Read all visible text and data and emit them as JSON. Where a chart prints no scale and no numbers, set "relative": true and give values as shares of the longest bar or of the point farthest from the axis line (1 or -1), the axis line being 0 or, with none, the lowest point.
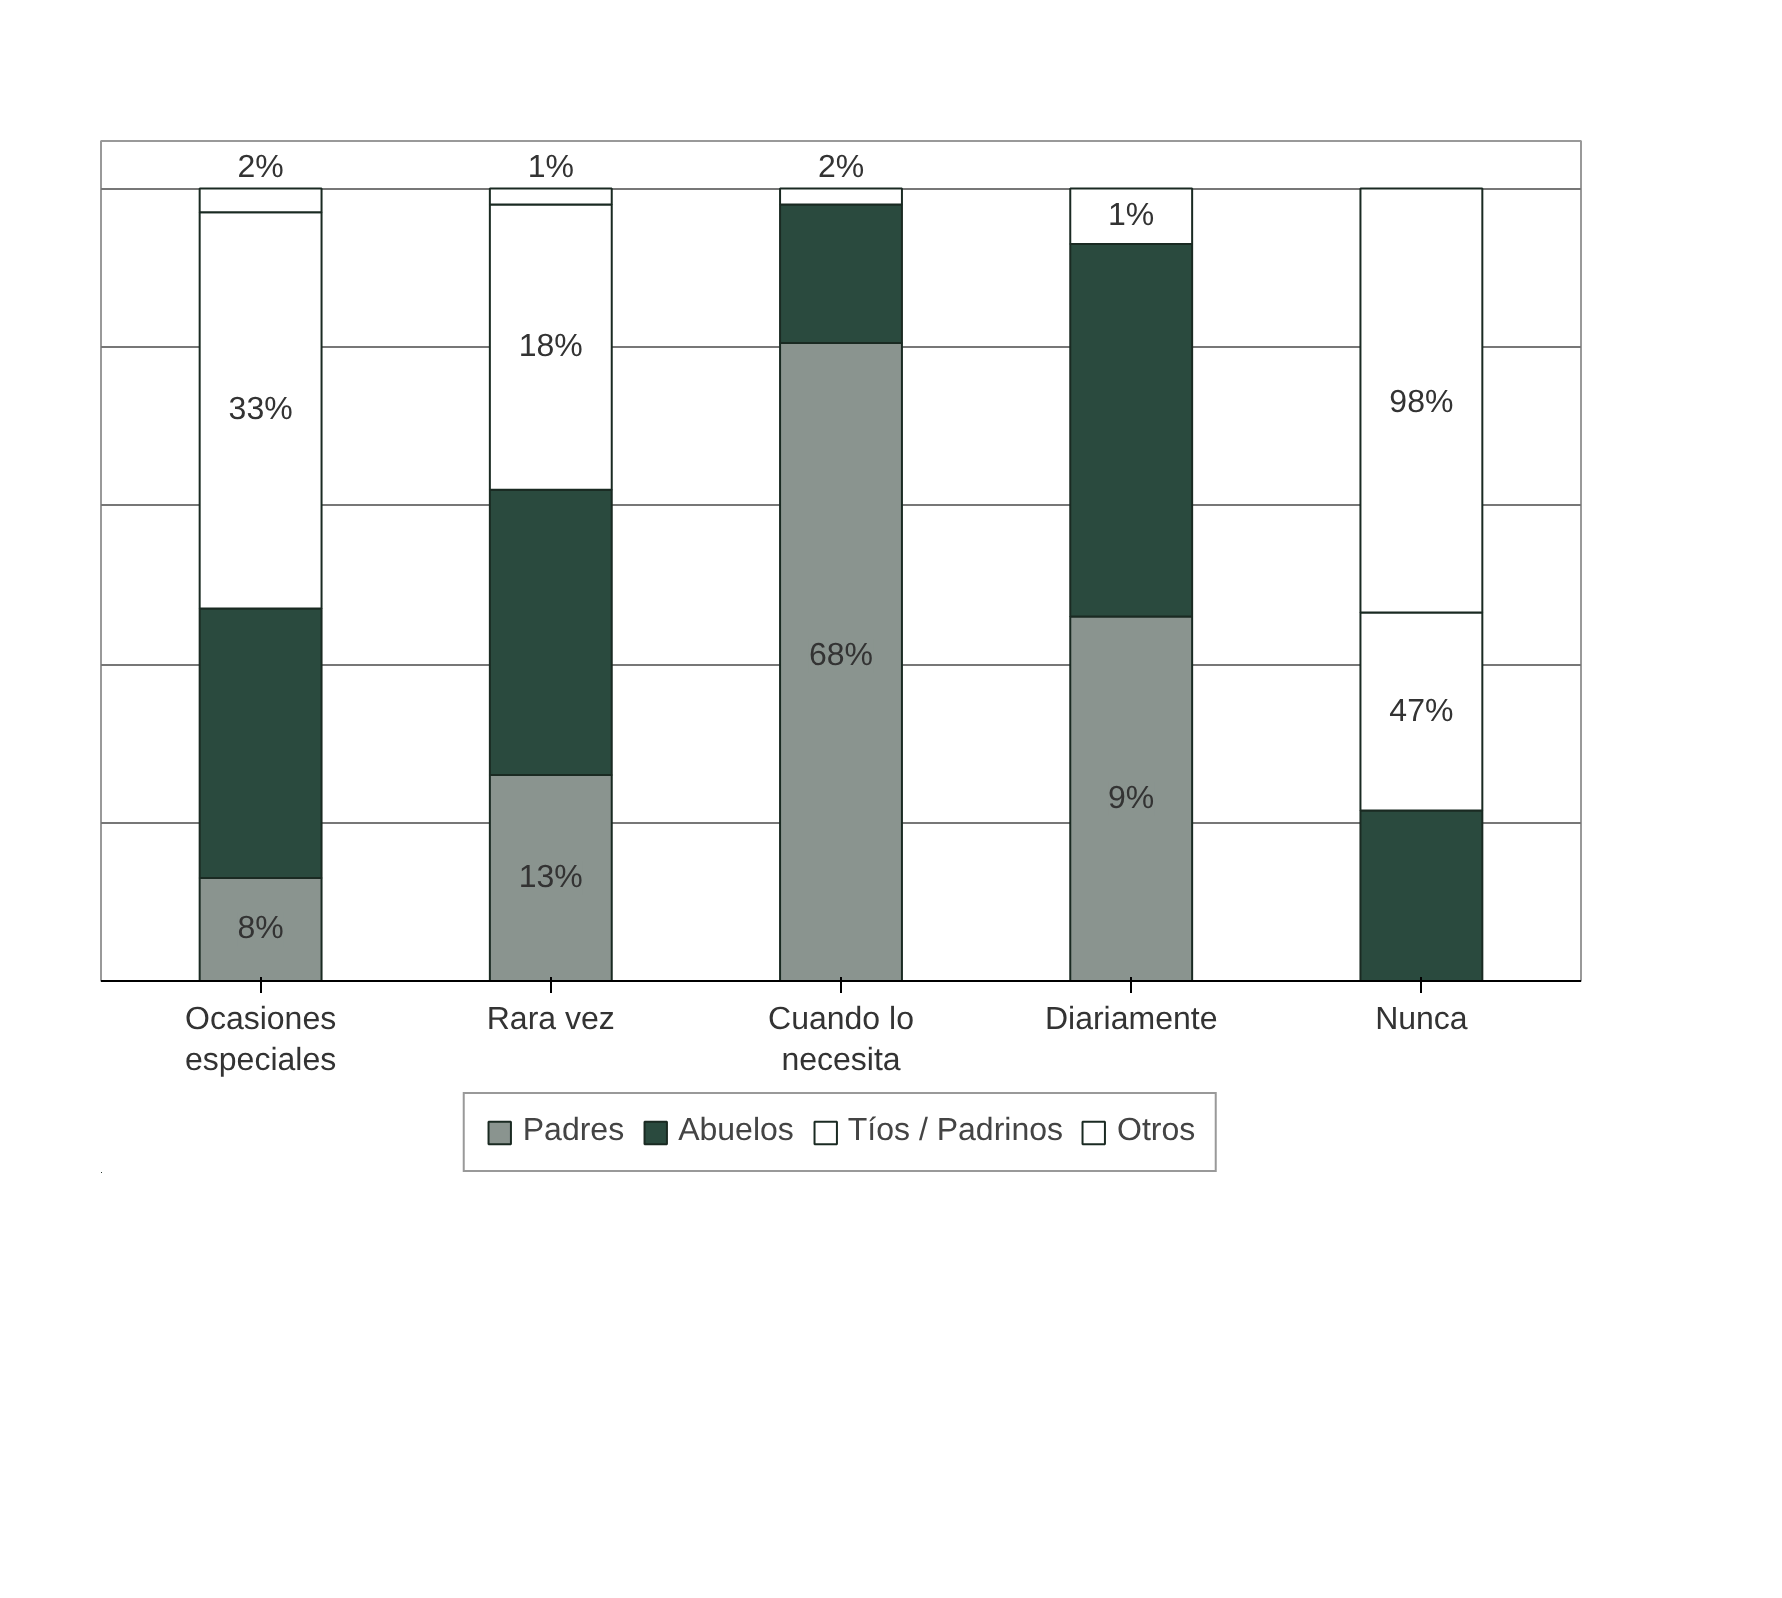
{
  "chart_data": {
    "type": "bar",
    "stacked": true,
    "relative": true,
    "grid": "y",
    "legend": "bottom",
    "categories": [
      "Ocasiones especiales",
      "Rara vez",
      "Cuando lo necesita",
      "Diariamente",
      "Nunca"
    ],
    "series": [
      {
        "name": "Padres",
        "color": "#8a948f",
        "values": [
          0.13,
          0.26,
          0.805,
          0.46,
          null
        ]
      },
      {
        "name": "Abuelos",
        "color": "#2a4a3e",
        "values": [
          0.34,
          0.36,
          0.175,
          0.47,
          0.215
        ]
      },
      {
        "name": "Tíos / Padrinos",
        "color": "#ffffff",
        "values": [
          0.5,
          0.36,
          0.02,
          0.07,
          0.25
        ]
      },
      {
        "name": "Otros",
        "color": "#ffffff",
        "values": [
          0.03,
          0.02,
          null,
          null,
          0.535
        ]
      }
    ],
    "annotations": [
      {
        "text": "8%",
        "x": "Ocasiones especiales",
        "y": 0.065
      },
      {
        "text": "33%",
        "x": "Ocasiones especiales",
        "y": 0.72
      },
      {
        "text": "2%",
        "x": "Ocasiones especiales",
        "y": 1.0
      },
      {
        "text": "13%",
        "x": "Rara vez",
        "y": 0.13
      },
      {
        "text": "18%",
        "x": "Rara vez",
        "y": 0.8
      },
      {
        "text": "1%",
        "x": "Rara vez",
        "y": 1.0
      },
      {
        "text": "68%",
        "x": "Cuando lo necesita",
        "y": 0.41
      },
      {
        "text": "2%",
        "x": "Cuando lo necesita",
        "y": 1.0
      },
      {
        "text": "9%",
        "x": "Diariamente",
        "y": 0.23
      },
      {
        "text": "1%",
        "x": "Diariamente",
        "y": 0.965
      },
      {
        "text": "47%",
        "x": "Nunca",
        "y": 0.34
      },
      {
        "text": "98%",
        "x": "Nunca",
        "y": 0.73
      }
    ]
  }
}
